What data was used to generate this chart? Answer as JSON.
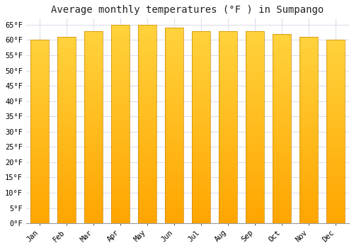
{
  "title": "Average monthly temperatures (°F ) in Sumpango",
  "months": [
    "Jan",
    "Feb",
    "Mar",
    "Apr",
    "May",
    "Jun",
    "Jul",
    "Aug",
    "Sep",
    "Oct",
    "Nov",
    "Dec"
  ],
  "values": [
    60,
    61,
    63,
    65,
    65,
    64,
    63,
    63,
    63,
    62,
    61,
    60
  ],
  "bar_color_bottom": "#FFA500",
  "bar_color_top": "#FFD050",
  "background_color": "#FFFFFF",
  "plot_bg_color": "#FFFFFF",
  "ytick_step": 5,
  "ymin": 0,
  "ymax": 67,
  "title_fontsize": 10,
  "tick_fontsize": 7.5,
  "grid_color": "#DDDDEE",
  "bar_edge_color": "#CC8800",
  "bar_width": 0.7
}
